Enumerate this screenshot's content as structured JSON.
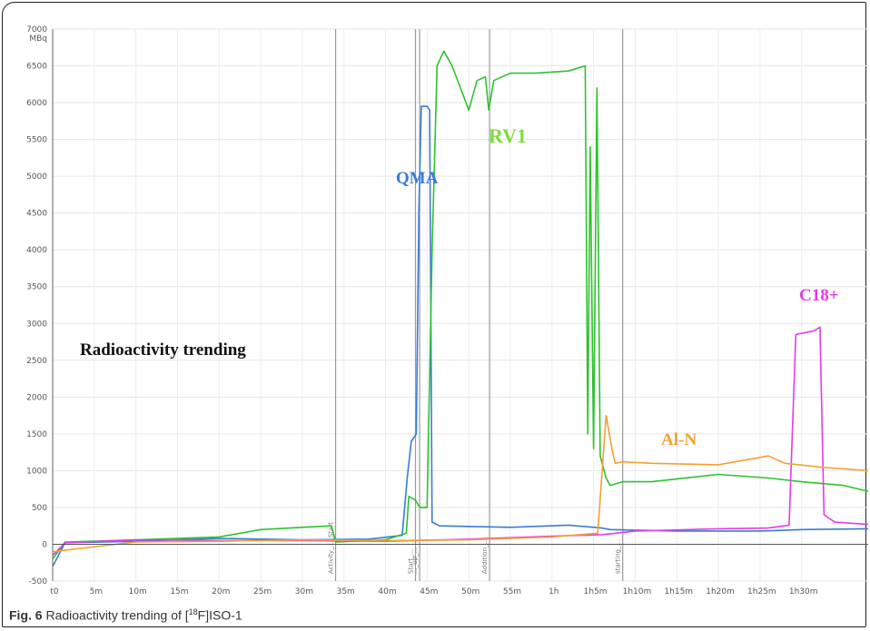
{
  "chart_data": {
    "type": "line",
    "unit_label": "MBq",
    "ylim": [
      -500,
      7000
    ],
    "yticks": [
      -500,
      0,
      500,
      1000,
      1500,
      2000,
      2500,
      3000,
      3500,
      4000,
      4500,
      5000,
      5500,
      6000,
      6500,
      7000
    ],
    "xlim": [
      0,
      98
    ],
    "xticks": [
      {
        "v": 0,
        "label": "t0"
      },
      {
        "v": 5,
        "label": "5m"
      },
      {
        "v": 10,
        "label": "10m"
      },
      {
        "v": 15,
        "label": "15m"
      },
      {
        "v": 20,
        "label": "20m"
      },
      {
        "v": 25,
        "label": "25m"
      },
      {
        "v": 30,
        "label": "30m"
      },
      {
        "v": 35,
        "label": "35m"
      },
      {
        "v": 40,
        "label": "40m"
      },
      {
        "v": 45,
        "label": "45m"
      },
      {
        "v": 50,
        "label": "50m"
      },
      {
        "v": 55,
        "label": "55m"
      },
      {
        "v": 60,
        "label": "1h"
      },
      {
        "v": 65,
        "label": "1h5m"
      },
      {
        "v": 70,
        "label": "1h10m"
      },
      {
        "v": 75,
        "label": "1h15m"
      },
      {
        "v": 80,
        "label": "1h20m"
      },
      {
        "v": 85,
        "label": "1h25m"
      },
      {
        "v": 90,
        "label": "1h30m"
      }
    ],
    "grid": true,
    "markers": [
      {
        "x": 34,
        "label": "Activity_..._Start"
      },
      {
        "x": 43.6,
        "label": "Start_..."
      },
      {
        "x": 44.1,
        "label": "..._up_..."
      },
      {
        "x": 52.5,
        "label": "Addition_..."
      },
      {
        "x": 68.5,
        "label": "starting_..."
      }
    ],
    "annotation_title": "Radioactivity trending",
    "series": [
      {
        "name": "QMA",
        "color": "#3a7bd5",
        "points": [
          [
            0,
            -300
          ],
          [
            1.5,
            20
          ],
          [
            10,
            40
          ],
          [
            20,
            80
          ],
          [
            30,
            60
          ],
          [
            38,
            70
          ],
          [
            42,
            120
          ],
          [
            42.6,
            900
          ],
          [
            43.1,
            1400
          ],
          [
            43.7,
            1500
          ],
          [
            44.0,
            4500
          ],
          [
            44.3,
            5950
          ],
          [
            45.0,
            5950
          ],
          [
            45.3,
            5900
          ],
          [
            45.6,
            300
          ],
          [
            46.5,
            250
          ],
          [
            55,
            230
          ],
          [
            62,
            260
          ],
          [
            66,
            220
          ],
          [
            67,
            200
          ],
          [
            75,
            180
          ],
          [
            85,
            180
          ],
          [
            90,
            200
          ],
          [
            98,
            210
          ]
        ]
      },
      {
        "name": "RV1",
        "color": "#2ec22e",
        "points": [
          [
            0,
            -200
          ],
          [
            1.5,
            30
          ],
          [
            10,
            60
          ],
          [
            20,
            100
          ],
          [
            25,
            200
          ],
          [
            30,
            230
          ],
          [
            33.5,
            250
          ],
          [
            34,
            30
          ],
          [
            40,
            60
          ],
          [
            42.5,
            150
          ],
          [
            42.8,
            650
          ],
          [
            43.6,
            600
          ],
          [
            44.1,
            500
          ],
          [
            45,
            500
          ],
          [
            45.6,
            4000
          ],
          [
            46.2,
            6500
          ],
          [
            47,
            6700
          ],
          [
            48,
            6500
          ],
          [
            49,
            6200
          ],
          [
            50,
            5900
          ],
          [
            51,
            6300
          ],
          [
            52,
            6350
          ],
          [
            52.4,
            5900
          ],
          [
            53,
            6300
          ],
          [
            55,
            6400
          ],
          [
            58,
            6400
          ],
          [
            62,
            6430
          ],
          [
            64,
            6500
          ],
          [
            64.3,
            1500
          ],
          [
            64.6,
            5400
          ],
          [
            65.0,
            1300
          ],
          [
            65.4,
            6200
          ],
          [
            65.8,
            1200
          ],
          [
            66.5,
            900
          ],
          [
            67,
            800
          ],
          [
            68.5,
            850
          ],
          [
            72,
            850
          ],
          [
            80,
            950
          ],
          [
            86,
            900
          ],
          [
            90,
            850
          ],
          [
            95,
            800
          ],
          [
            98,
            720
          ]
        ]
      },
      {
        "name": "C18+",
        "color": "#e23be8",
        "points": [
          [
            0,
            -150
          ],
          [
            1.5,
            20
          ],
          [
            10,
            60
          ],
          [
            20,
            50
          ],
          [
            30,
            50
          ],
          [
            40,
            40
          ],
          [
            50,
            70
          ],
          [
            60,
            110
          ],
          [
            66,
            130
          ],
          [
            70,
            180
          ],
          [
            80,
            210
          ],
          [
            86,
            220
          ],
          [
            88.5,
            260
          ],
          [
            89.3,
            2850
          ],
          [
            91.5,
            2900
          ],
          [
            92.2,
            2950
          ],
          [
            92.7,
            400
          ],
          [
            94,
            300
          ],
          [
            98,
            270
          ]
        ]
      },
      {
        "name": "Al-N",
        "color": "#f5a033",
        "points": [
          [
            0,
            -100
          ],
          [
            10,
            30
          ],
          [
            20,
            40
          ],
          [
            30,
            60
          ],
          [
            40,
            50
          ],
          [
            50,
            60
          ],
          [
            60,
            100
          ],
          [
            65.5,
            150
          ],
          [
            66.5,
            1750
          ],
          [
            67.2,
            1300
          ],
          [
            67.6,
            1100
          ],
          [
            68.5,
            1120
          ],
          [
            72,
            1100
          ],
          [
            80,
            1080
          ],
          [
            86,
            1200
          ],
          [
            88,
            1100
          ],
          [
            92,
            1050
          ],
          [
            98,
            1000
          ]
        ]
      }
    ]
  },
  "caption": {
    "fig": "Fig. 6",
    "text_before": "Radioactivity trending of [",
    "sup": "18",
    "text_after": "F]ISO-1"
  }
}
